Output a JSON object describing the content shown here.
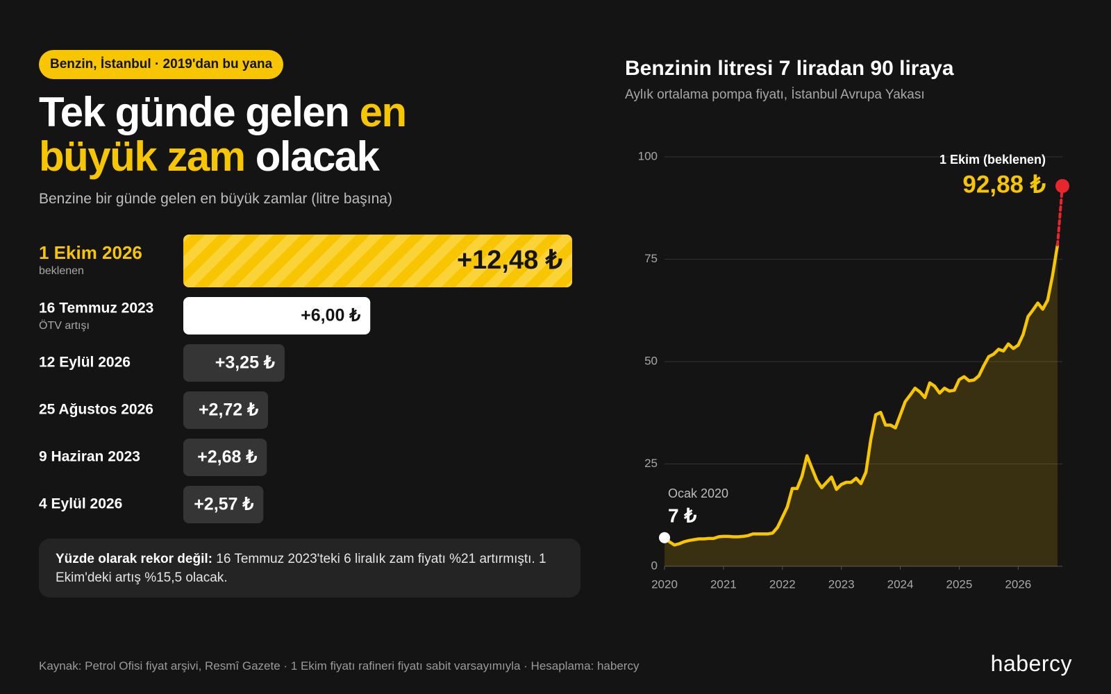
{
  "header": {
    "tag": "Benzin, İstanbul · 2019'dan bu yana",
    "title_parts": [
      {
        "text": "Tek günde gelen",
        "highlight": false
      },
      {
        "text": "en",
        "highlight": true
      },
      {
        "text": "büyük zam",
        "highlight": true
      },
      {
        "text": "olacak",
        "highlight": false
      }
    ],
    "subtitle": "Benzine bir günde gelen en büyük zamlar (litre başına)"
  },
  "chart_data": [
    {
      "type": "bar",
      "orientation": "horizontal",
      "categories": [
        "1 Ekim 2026",
        "16 Temmuz 2023",
        "12 Eylül 2026",
        "25 Ağustos 2026",
        "9 Haziran 2023",
        "4 Eylül 2026"
      ],
      "sublabels": [
        "beklenen",
        "ÖTV artışı",
        null,
        null,
        null,
        null
      ],
      "values": [
        12.48,
        6.0,
        3.25,
        2.72,
        2.68,
        2.57
      ],
      "value_labels": [
        "+12,48 ₺",
        "+6,00 ₺",
        "+3,25 ₺",
        "+2,72 ₺",
        "+2,68 ₺",
        "+2,57 ₺"
      ],
      "colors": [
        "#f7c600",
        "#ffffff",
        "#353535",
        "#353535",
        "#353535",
        "#353535"
      ],
      "label_colors": [
        "#f7c600",
        "#ffffff",
        "#ffffff",
        "#ffffff",
        "#ffffff",
        "#ffffff"
      ]
    },
    {
      "type": "line",
      "title": "Benzinin litresi 7 liradan 90 liraya",
      "subtitle": "Aylık ortalama pompa fiyatı, İstanbul Avrupa Yakası",
      "color": "#f7c600",
      "x": [
        2020,
        2020.083,
        2020.167,
        2020.25,
        2020.333,
        2020.417,
        2020.5,
        2020.583,
        2020.667,
        2020.75,
        2020.833,
        2020.917,
        2021,
        2021.083,
        2021.167,
        2021.25,
        2021.333,
        2021.417,
        2021.5,
        2021.583,
        2021.667,
        2021.75,
        2021.833,
        2021.917,
        2022,
        2022.083,
        2022.167,
        2022.25,
        2022.333,
        2022.417,
        2022.5,
        2022.583,
        2022.667,
        2022.75,
        2022.833,
        2022.917,
        2023,
        2023.083,
        2023.167,
        2023.25,
        2023.333,
        2023.417,
        2023.5,
        2023.583,
        2023.667,
        2023.75,
        2023.833,
        2023.917,
        2024,
        2024.083,
        2024.167,
        2024.25,
        2024.333,
        2024.417,
        2024.5,
        2024.583,
        2024.667,
        2024.75,
        2024.833,
        2024.917,
        2025,
        2025.083,
        2025.167,
        2025.25,
        2025.333,
        2025.417,
        2025.5,
        2025.583,
        2025.667,
        2025.75,
        2025.833,
        2025.917,
        2026,
        2026.083,
        2026.167,
        2026.25,
        2026.333,
        2026.417,
        2026.5,
        2026.583,
        2026.667
      ],
      "values": [
        7,
        6,
        5.2,
        5.5,
        6,
        6.3,
        6.5,
        6.7,
        6.7,
        6.8,
        6.8,
        7.2,
        7.3,
        7.3,
        7.2,
        7.2,
        7.3,
        7.5,
        7.9,
        7.9,
        7.9,
        7.9,
        8.1,
        9.5,
        12,
        14.5,
        19,
        19,
        22,
        27,
        24,
        21,
        19.2,
        20.5,
        21.8,
        18.8,
        20,
        20.5,
        20.5,
        21.5,
        20.2,
        23,
        31,
        37,
        37.6,
        34.5,
        34.5,
        33.8,
        37,
        40.2,
        41.8,
        43.5,
        42.6,
        41.2,
        44.8,
        44,
        42.3,
        43.5,
        42.8,
        43,
        45.6,
        46.3,
        45.3,
        45.5,
        46.5,
        49,
        51.2,
        51.8,
        53,
        52.6,
        54.3,
        53.2,
        54,
        56.6,
        61,
        62.6,
        64.3,
        62.8,
        65,
        71,
        78.5
      ],
      "xlim": [
        2020,
        2026.75
      ],
      "xticks": [
        2020,
        2021,
        2022,
        2023,
        2024,
        2025,
        2026
      ],
      "ylim": [
        0,
        100
      ],
      "yticks": [
        0,
        25,
        50,
        75,
        100
      ],
      "grid": true,
      "start_annotation": {
        "label": "Ocak 2020",
        "value_label": "7 ₺"
      },
      "projection": {
        "x": 2026.75,
        "value": 92.88,
        "value_label": "92,88 ₺",
        "label": "1 Ekim (beklenen)",
        "color": "#e8262d"
      }
    }
  ],
  "note": {
    "bold": "Yüzde olarak rekor değil:",
    "text": "16 Temmuz 2023'teki 6 liralık zam fiyatı %21 artırmıştı. 1 Ekim'deki artış %15,5 olacak."
  },
  "footer": {
    "source": "Kaynak: Petrol Ofisi fiyat arşivi, Resmî Gazete · 1 Ekim fiyatı rafineri fiyatı sabit varsayımıyla · Hesaplama: habercy",
    "logo": "habercy"
  }
}
